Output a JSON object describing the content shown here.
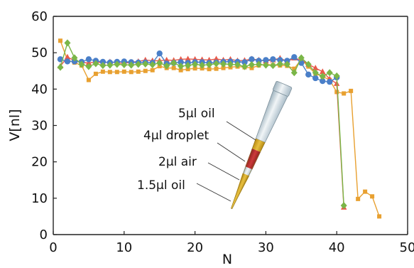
{
  "chart_data": {
    "type": "scatter",
    "title": "",
    "xlabel": "N",
    "ylabel": "V[nl]",
    "xlim": [
      0,
      50
    ],
    "ylim": [
      0,
      60
    ],
    "xticks": [
      0,
      10,
      20,
      30,
      40,
      50
    ],
    "yticks": [
      0,
      10,
      20,
      30,
      40,
      50,
      60
    ],
    "grid": false,
    "legend": "none",
    "series": [
      {
        "color": "#e8a030",
        "marker": "square",
        "points": [
          [
            1,
            53.3
          ],
          [
            2,
            48.0
          ],
          [
            3,
            47.3
          ],
          [
            4,
            46.5
          ],
          [
            5,
            42.5
          ],
          [
            6,
            44.2
          ],
          [
            7,
            44.8
          ],
          [
            8,
            44.7
          ],
          [
            9,
            44.7
          ],
          [
            10,
            44.8
          ],
          [
            11,
            44.7
          ],
          [
            12,
            44.8
          ],
          [
            13,
            45.0
          ],
          [
            14,
            45.2
          ],
          [
            15,
            46.3
          ],
          [
            16,
            45.8
          ],
          [
            17,
            45.8
          ],
          [
            18,
            45.2
          ],
          [
            19,
            45.5
          ],
          [
            20,
            45.7
          ],
          [
            21,
            45.7
          ],
          [
            22,
            45.5
          ],
          [
            23,
            45.6
          ],
          [
            24,
            45.8
          ],
          [
            25,
            46.0
          ],
          [
            26,
            46.2
          ],
          [
            27,
            46.0
          ],
          [
            28,
            45.8
          ],
          [
            29,
            46.5
          ],
          [
            30,
            46.8
          ],
          [
            31,
            46.6
          ],
          [
            32,
            46.5
          ],
          [
            33,
            46.4
          ],
          [
            34,
            45.6
          ],
          [
            35,
            48.2
          ],
          [
            36,
            46.2
          ],
          [
            37,
            44.2
          ],
          [
            38,
            43.5
          ],
          [
            39,
            42.5
          ],
          [
            40,
            39.2
          ],
          [
            41,
            38.8
          ],
          [
            42,
            39.5
          ],
          [
            43,
            9.8
          ],
          [
            44,
            11.8
          ],
          [
            45,
            10.5
          ],
          [
            46,
            5.0
          ]
        ]
      },
      {
        "color": "#e85a4a",
        "marker": "triangle",
        "points": [
          [
            1,
            46.3
          ],
          [
            2,
            48.8
          ],
          [
            3,
            47.8
          ],
          [
            4,
            47.3
          ],
          [
            5,
            47.2
          ],
          [
            6,
            47.5
          ],
          [
            7,
            47.2
          ],
          [
            8,
            47.5
          ],
          [
            9,
            47.2
          ],
          [
            10,
            47.1
          ],
          [
            11,
            47.4
          ],
          [
            12,
            47.6
          ],
          [
            13,
            48.0
          ],
          [
            14,
            47.8
          ],
          [
            15,
            47.8
          ],
          [
            16,
            48.0
          ],
          [
            17,
            47.9
          ],
          [
            18,
            48.2
          ],
          [
            19,
            48.3
          ],
          [
            20,
            48.2
          ],
          [
            21,
            48.1
          ],
          [
            22,
            48.0
          ],
          [
            23,
            48.3
          ],
          [
            24,
            48.0
          ],
          [
            25,
            48.2
          ],
          [
            26,
            47.8
          ],
          [
            27,
            47.9
          ],
          [
            28,
            48.3
          ],
          [
            29,
            48.0
          ],
          [
            30,
            47.7
          ],
          [
            31,
            48.0
          ],
          [
            32,
            48.5
          ],
          [
            33,
            47.6
          ],
          [
            34,
            48.5
          ],
          [
            35,
            48.0
          ],
          [
            36,
            46.8
          ],
          [
            37,
            45.8
          ],
          [
            38,
            44.8
          ],
          [
            39,
            42.8
          ],
          [
            40,
            41.5
          ],
          [
            41,
            7.5
          ]
        ]
      },
      {
        "color": "#4a7fc8",
        "marker": "circle",
        "points": [
          [
            1,
            48.2
          ],
          [
            2,
            47.6
          ],
          [
            3,
            47.6
          ],
          [
            4,
            47.5
          ],
          [
            5,
            48.2
          ],
          [
            6,
            47.8
          ],
          [
            7,
            47.5
          ],
          [
            8,
            47.3
          ],
          [
            9,
            47.5
          ],
          [
            10,
            47.6
          ],
          [
            11,
            47.4
          ],
          [
            12,
            47.3
          ],
          [
            13,
            47.3
          ],
          [
            14,
            47.2
          ],
          [
            15,
            49.8
          ],
          [
            16,
            47.0
          ],
          [
            17,
            47.2
          ],
          [
            18,
            47.4
          ],
          [
            19,
            47.2
          ],
          [
            20,
            47.4
          ],
          [
            21,
            47.4
          ],
          [
            22,
            47.2
          ],
          [
            23,
            47.3
          ],
          [
            24,
            47.5
          ],
          [
            25,
            47.6
          ],
          [
            26,
            47.5
          ],
          [
            27,
            47.4
          ],
          [
            28,
            48.2
          ],
          [
            29,
            47.8
          ],
          [
            30,
            48.0
          ],
          [
            31,
            48.2
          ],
          [
            32,
            48.0
          ],
          [
            33,
            47.8
          ],
          [
            34,
            48.8
          ],
          [
            35,
            47.2
          ],
          [
            36,
            44.0
          ],
          [
            37,
            43.0
          ],
          [
            38,
            42.2
          ],
          [
            39,
            42.0
          ],
          [
            40,
            43.2
          ]
        ]
      },
      {
        "color": "#7ab648",
        "marker": "diamond",
        "points": [
          [
            1,
            46.0
          ],
          [
            2,
            52.7
          ],
          [
            3,
            48.6
          ],
          [
            4,
            46.8
          ],
          [
            5,
            46.2
          ],
          [
            6,
            47.0
          ],
          [
            7,
            46.5
          ],
          [
            8,
            46.6
          ],
          [
            9,
            46.8
          ],
          [
            10,
            46.7
          ],
          [
            11,
            46.6
          ],
          [
            12,
            46.8
          ],
          [
            13,
            46.9
          ],
          [
            14,
            46.7
          ],
          [
            15,
            47.2
          ],
          [
            16,
            46.4
          ],
          [
            17,
            47.2
          ],
          [
            18,
            46.3
          ],
          [
            19,
            46.5
          ],
          [
            20,
            46.8
          ],
          [
            21,
            46.6
          ],
          [
            22,
            46.7
          ],
          [
            23,
            47.0
          ],
          [
            24,
            46.9
          ],
          [
            25,
            46.8
          ],
          [
            26,
            46.7
          ],
          [
            27,
            46.2
          ],
          [
            28,
            46.7
          ],
          [
            29,
            46.8
          ],
          [
            30,
            46.6
          ],
          [
            31,
            46.5
          ],
          [
            32,
            46.9
          ],
          [
            33,
            46.8
          ],
          [
            34,
            44.5
          ],
          [
            35,
            48.6
          ],
          [
            36,
            46.8
          ],
          [
            37,
            44.5
          ],
          [
            38,
            43.5
          ],
          [
            39,
            44.5
          ],
          [
            40,
            43.6
          ],
          [
            41,
            8.0
          ]
        ]
      }
    ],
    "annotations": [
      "5µl oil",
      "4µl droplet",
      "2µl air",
      "1.5µl oil"
    ]
  }
}
